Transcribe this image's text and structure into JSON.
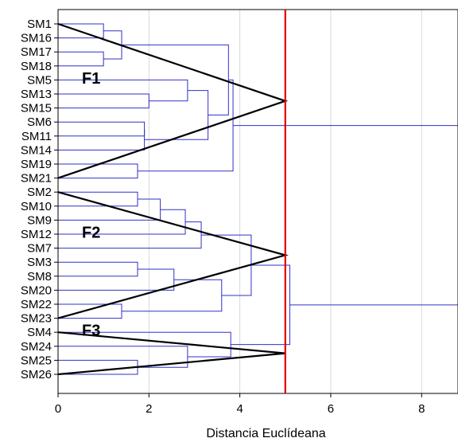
{
  "chart_data": {
    "type": "dendrogram",
    "xlabel": "Distancia Euclídeana",
    "xlim": [
      0,
      8.8
    ],
    "xticks": [
      0,
      2,
      4,
      6,
      8
    ],
    "grid": true,
    "leaves": [
      "SM1",
      "SM16",
      "SM17",
      "SM18",
      "SM5",
      "SM13",
      "SM15",
      "SM6",
      "SM11",
      "SM14",
      "SM19",
      "SM21",
      "SM2",
      "SM10",
      "SM9",
      "SM12",
      "SM7",
      "SM3",
      "SM8",
      "SM20",
      "SM22",
      "SM23",
      "SM4",
      "SM24",
      "SM25",
      "SM26"
    ],
    "merges": [
      {
        "a": "SM1",
        "b": "SM16",
        "height": 1.0
      },
      {
        "a": "SM17",
        "b": "SM18",
        "height": 1.0
      },
      {
        "a": "SM1+SM16",
        "b": "SM17+SM18",
        "height": 1.4
      },
      {
        "a": "SM13",
        "b": "SM15",
        "height": 2.0
      },
      {
        "a": "SM5",
        "b": "SM13+SM15",
        "height": 2.85
      },
      {
        "a": "SM6",
        "b": "SM11",
        "height": 1.9
      },
      {
        "a": "SM14",
        "b": "SM6+SM11",
        "height": 1.9
      },
      {
        "a": "SM5+SM13+SM15",
        "b": "SM6+SM11+SM14",
        "height": 3.3
      },
      {
        "a": "SM1+SM16+SM17+SM18",
        "b": "SM5..SM14",
        "height": 3.75
      },
      {
        "a": "SM19",
        "b": "SM21",
        "height": 1.75
      },
      {
        "a": "SM1..SM14",
        "b": "SM19+SM21",
        "height": 3.85
      },
      {
        "a": "SM2",
        "b": "SM10",
        "height": 1.75
      },
      {
        "a": "SM2+SM10",
        "b": "SM9",
        "height": 2.25
      },
      {
        "a": "SM2+SM10+SM9",
        "b": "SM12",
        "height": 2.8
      },
      {
        "a": "SM2..SM12",
        "b": "SM7",
        "height": 3.15
      },
      {
        "a": "SM3",
        "b": "SM8",
        "height": 1.75
      },
      {
        "a": "SM3+SM8",
        "b": "SM20",
        "height": 2.55
      },
      {
        "a": "SM22",
        "b": "SM23",
        "height": 1.4
      },
      {
        "a": "SM3+SM8+SM20",
        "b": "SM22+SM23",
        "height": 3.6
      },
      {
        "a": "SM2..SM7",
        "b": "SM3..SM23",
        "height": 4.25
      },
      {
        "a": "SM25",
        "b": "SM26",
        "height": 1.75
      },
      {
        "a": "SM24",
        "b": "SM25+SM26",
        "height": 2.85
      },
      {
        "a": "SM4",
        "b": "SM24+SM25+SM26",
        "height": 3.8
      },
      {
        "a": "SM2..SM23",
        "b": "SM4..SM26",
        "height": 5.1
      },
      {
        "a": "SM1..SM21",
        "b": "SM2..SM26",
        "height": 8.8
      }
    ],
    "cut_line": {
      "x": 5.0,
      "color": "#e00000"
    },
    "clusters": [
      {
        "label": "F1",
        "first_leaf": "SM1",
        "last_leaf": "SM21",
        "apex_x": 5.0
      },
      {
        "label": "F2",
        "first_leaf": "SM2",
        "last_leaf": "SM23",
        "apex_x": 5.0
      },
      {
        "label": "F3",
        "first_leaf": "SM4",
        "last_leaf": "SM26",
        "apex_x": 5.0
      }
    ],
    "colors": {
      "link": "#3030c8",
      "grid": "#d8d8d8",
      "axis": "#000000",
      "cut": "#e00000",
      "triangle": "#000000"
    }
  }
}
